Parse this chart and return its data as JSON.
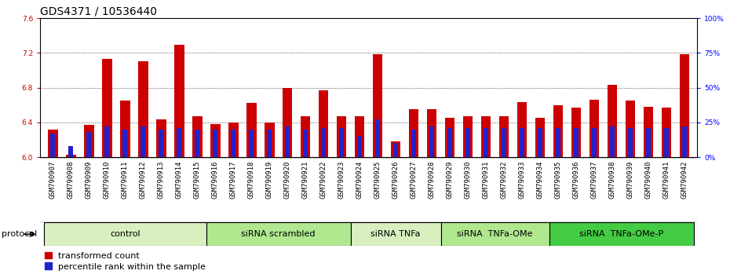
{
  "title": "GDS4371 / 10536440",
  "samples": [
    "GSM790907",
    "GSM790908",
    "GSM790909",
    "GSM790910",
    "GSM790911",
    "GSM790912",
    "GSM790913",
    "GSM790914",
    "GSM790915",
    "GSM790916",
    "GSM790917",
    "GSM790918",
    "GSM790919",
    "GSM790920",
    "GSM790921",
    "GSM790922",
    "GSM790923",
    "GSM790924",
    "GSM790925",
    "GSM790926",
    "GSM790927",
    "GSM790928",
    "GSM790929",
    "GSM790930",
    "GSM790931",
    "GSM790932",
    "GSM790933",
    "GSM790934",
    "GSM790935",
    "GSM790936",
    "GSM790937",
    "GSM790938",
    "GSM790939",
    "GSM790940",
    "GSM790941",
    "GSM790942"
  ],
  "transformed_count": [
    6.32,
    6.03,
    6.37,
    7.13,
    6.65,
    7.1,
    6.43,
    7.29,
    6.47,
    6.38,
    6.4,
    6.62,
    6.4,
    6.8,
    6.47,
    6.77,
    6.47,
    6.47,
    7.18,
    6.18,
    6.55,
    6.55,
    6.45,
    6.47,
    6.47,
    6.47,
    6.63,
    6.45,
    6.6,
    6.57,
    6.66,
    6.83,
    6.65,
    6.58,
    6.57,
    7.18
  ],
  "percentile_rank": [
    17,
    8,
    18,
    22,
    20,
    22,
    20,
    21,
    20,
    20,
    20,
    20,
    20,
    22,
    20,
    21,
    21,
    15,
    27,
    10,
    20,
    22,
    21,
    21,
    21,
    21,
    21,
    21,
    21,
    21,
    21,
    22,
    21,
    21,
    21,
    22
  ],
  "groups": [
    {
      "label": "control",
      "start": 0,
      "end": 8,
      "color": "#d8f0c0"
    },
    {
      "label": "siRNA scrambled",
      "start": 9,
      "end": 16,
      "color": "#b0e890"
    },
    {
      "label": "siRNA TNFa",
      "start": 17,
      "end": 21,
      "color": "#d8f0c0"
    },
    {
      "label": "siRNA  TNFa-OMe",
      "start": 22,
      "end": 27,
      "color": "#b0e890"
    },
    {
      "label": "siRNA  TNFa-OMe-P",
      "start": 28,
      "end": 35,
      "color": "#44cc44"
    }
  ],
  "ylim_left": [
    6.0,
    7.6
  ],
  "ylim_right": [
    0,
    100
  ],
  "yticks_left": [
    6.0,
    6.4,
    6.8,
    7.2,
    7.6
  ],
  "yticks_right": [
    0,
    25,
    50,
    75,
    100
  ],
  "bar_color_red": "#cc0000",
  "bar_color_blue": "#2222cc",
  "bar_width": 0.55,
  "blue_bar_width": 0.25,
  "tick_label_bg": "#d8d8d8",
  "title_fontsize": 10,
  "tick_fontsize": 6.5,
  "legend_fontsize": 8,
  "group_label_fontsize": 8
}
